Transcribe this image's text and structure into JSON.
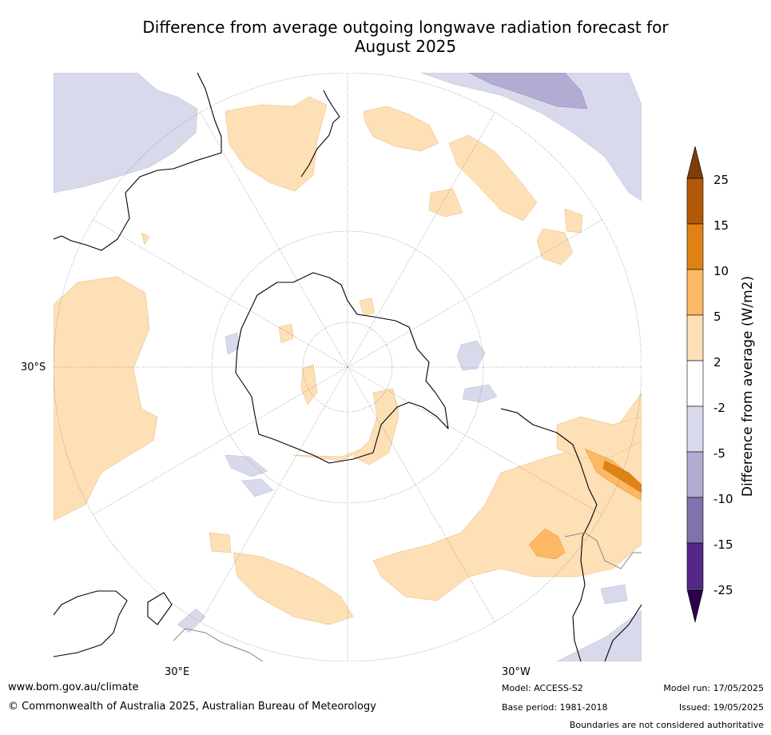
{
  "title_line1": "Difference from average outgoing longwave radiation forecast for",
  "title_line2": "August 2025",
  "labels": {
    "lat30s": "30°S",
    "lon30e": "30°E",
    "lon30w": "30°W"
  },
  "colorbar": {
    "label": "Difference from average (W/m2)",
    "ticks": [
      "25",
      "15",
      "10",
      "5",
      "2",
      "-2",
      "-5",
      "-10",
      "-15",
      "-25"
    ],
    "colors": [
      "#7e3d0b",
      "#b35806",
      "#e08214",
      "#fdb863",
      "#fee0b6",
      "#ffffff",
      "#d8daeb",
      "#b2abd2",
      "#8073ac",
      "#542788",
      "#2d004b"
    ]
  },
  "footer": {
    "url": "www.bom.gov.au/climate",
    "copyright": "© Commonwealth of Australia 2025, Australian Bureau of Meteorology",
    "model": "Model: ACCESS-S2",
    "base_period": "Base period: 1981-2018",
    "model_run": "Model run: 17/05/2025",
    "issued": "Issued: 19/05/2025",
    "disclaimer": "Boundaries are not considered authoritative"
  }
}
